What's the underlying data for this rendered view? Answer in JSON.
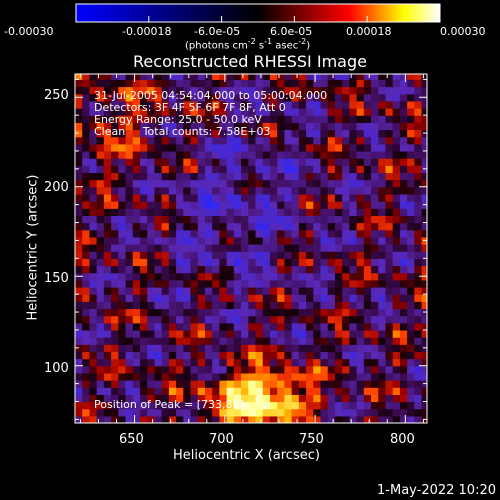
{
  "colorbar": {
    "ticks": [
      "-0.00030",
      "-0.00018",
      "-6.0e-05",
      "6.0e-05",
      "0.00018",
      "0.00030"
    ],
    "tick_values": [
      -0.0003,
      -0.00018,
      -6e-05,
      6e-05,
      0.00018,
      0.0003
    ],
    "range": [
      -0.0003,
      0.0003
    ],
    "units_main": "(photons cm",
    "units_sup1": "-2",
    "units_mid": " s",
    "units_sup2": "-1",
    "units_mid2": " asec",
    "units_sup3": "-2",
    "units_end": ")",
    "colormap": [
      "#0000ff",
      "#000000",
      "#ff0000",
      "#ffff00",
      "#ffffff"
    ]
  },
  "chart_data": {
    "type": "heatmap",
    "title": "Reconstructed RHESSI Image",
    "xlabel": "Heliocentric X (arcsec)",
    "ylabel": "Heliocentric Y (arcsec)",
    "xlim": [
      617,
      812
    ],
    "ylim": [
      68,
      263
    ],
    "xticks": [
      650,
      700,
      750,
      800
    ],
    "yticks": [
      100,
      150,
      200,
      250
    ],
    "info_lines": [
      "31-Jul-2005 04:54:04.000 to 05:00:04.000",
      "Detectors: 3F 4F 5F 6F 7F 8F, Att 0",
      "Energy Range: 25.0 - 50.0 keV",
      "Clean     Total counts: 7.58E+03"
    ],
    "peak_label": "Position of Peak = [733,80]",
    "peak": [
      733,
      80
    ]
  },
  "timestamp": "1-May-2022 10:20"
}
